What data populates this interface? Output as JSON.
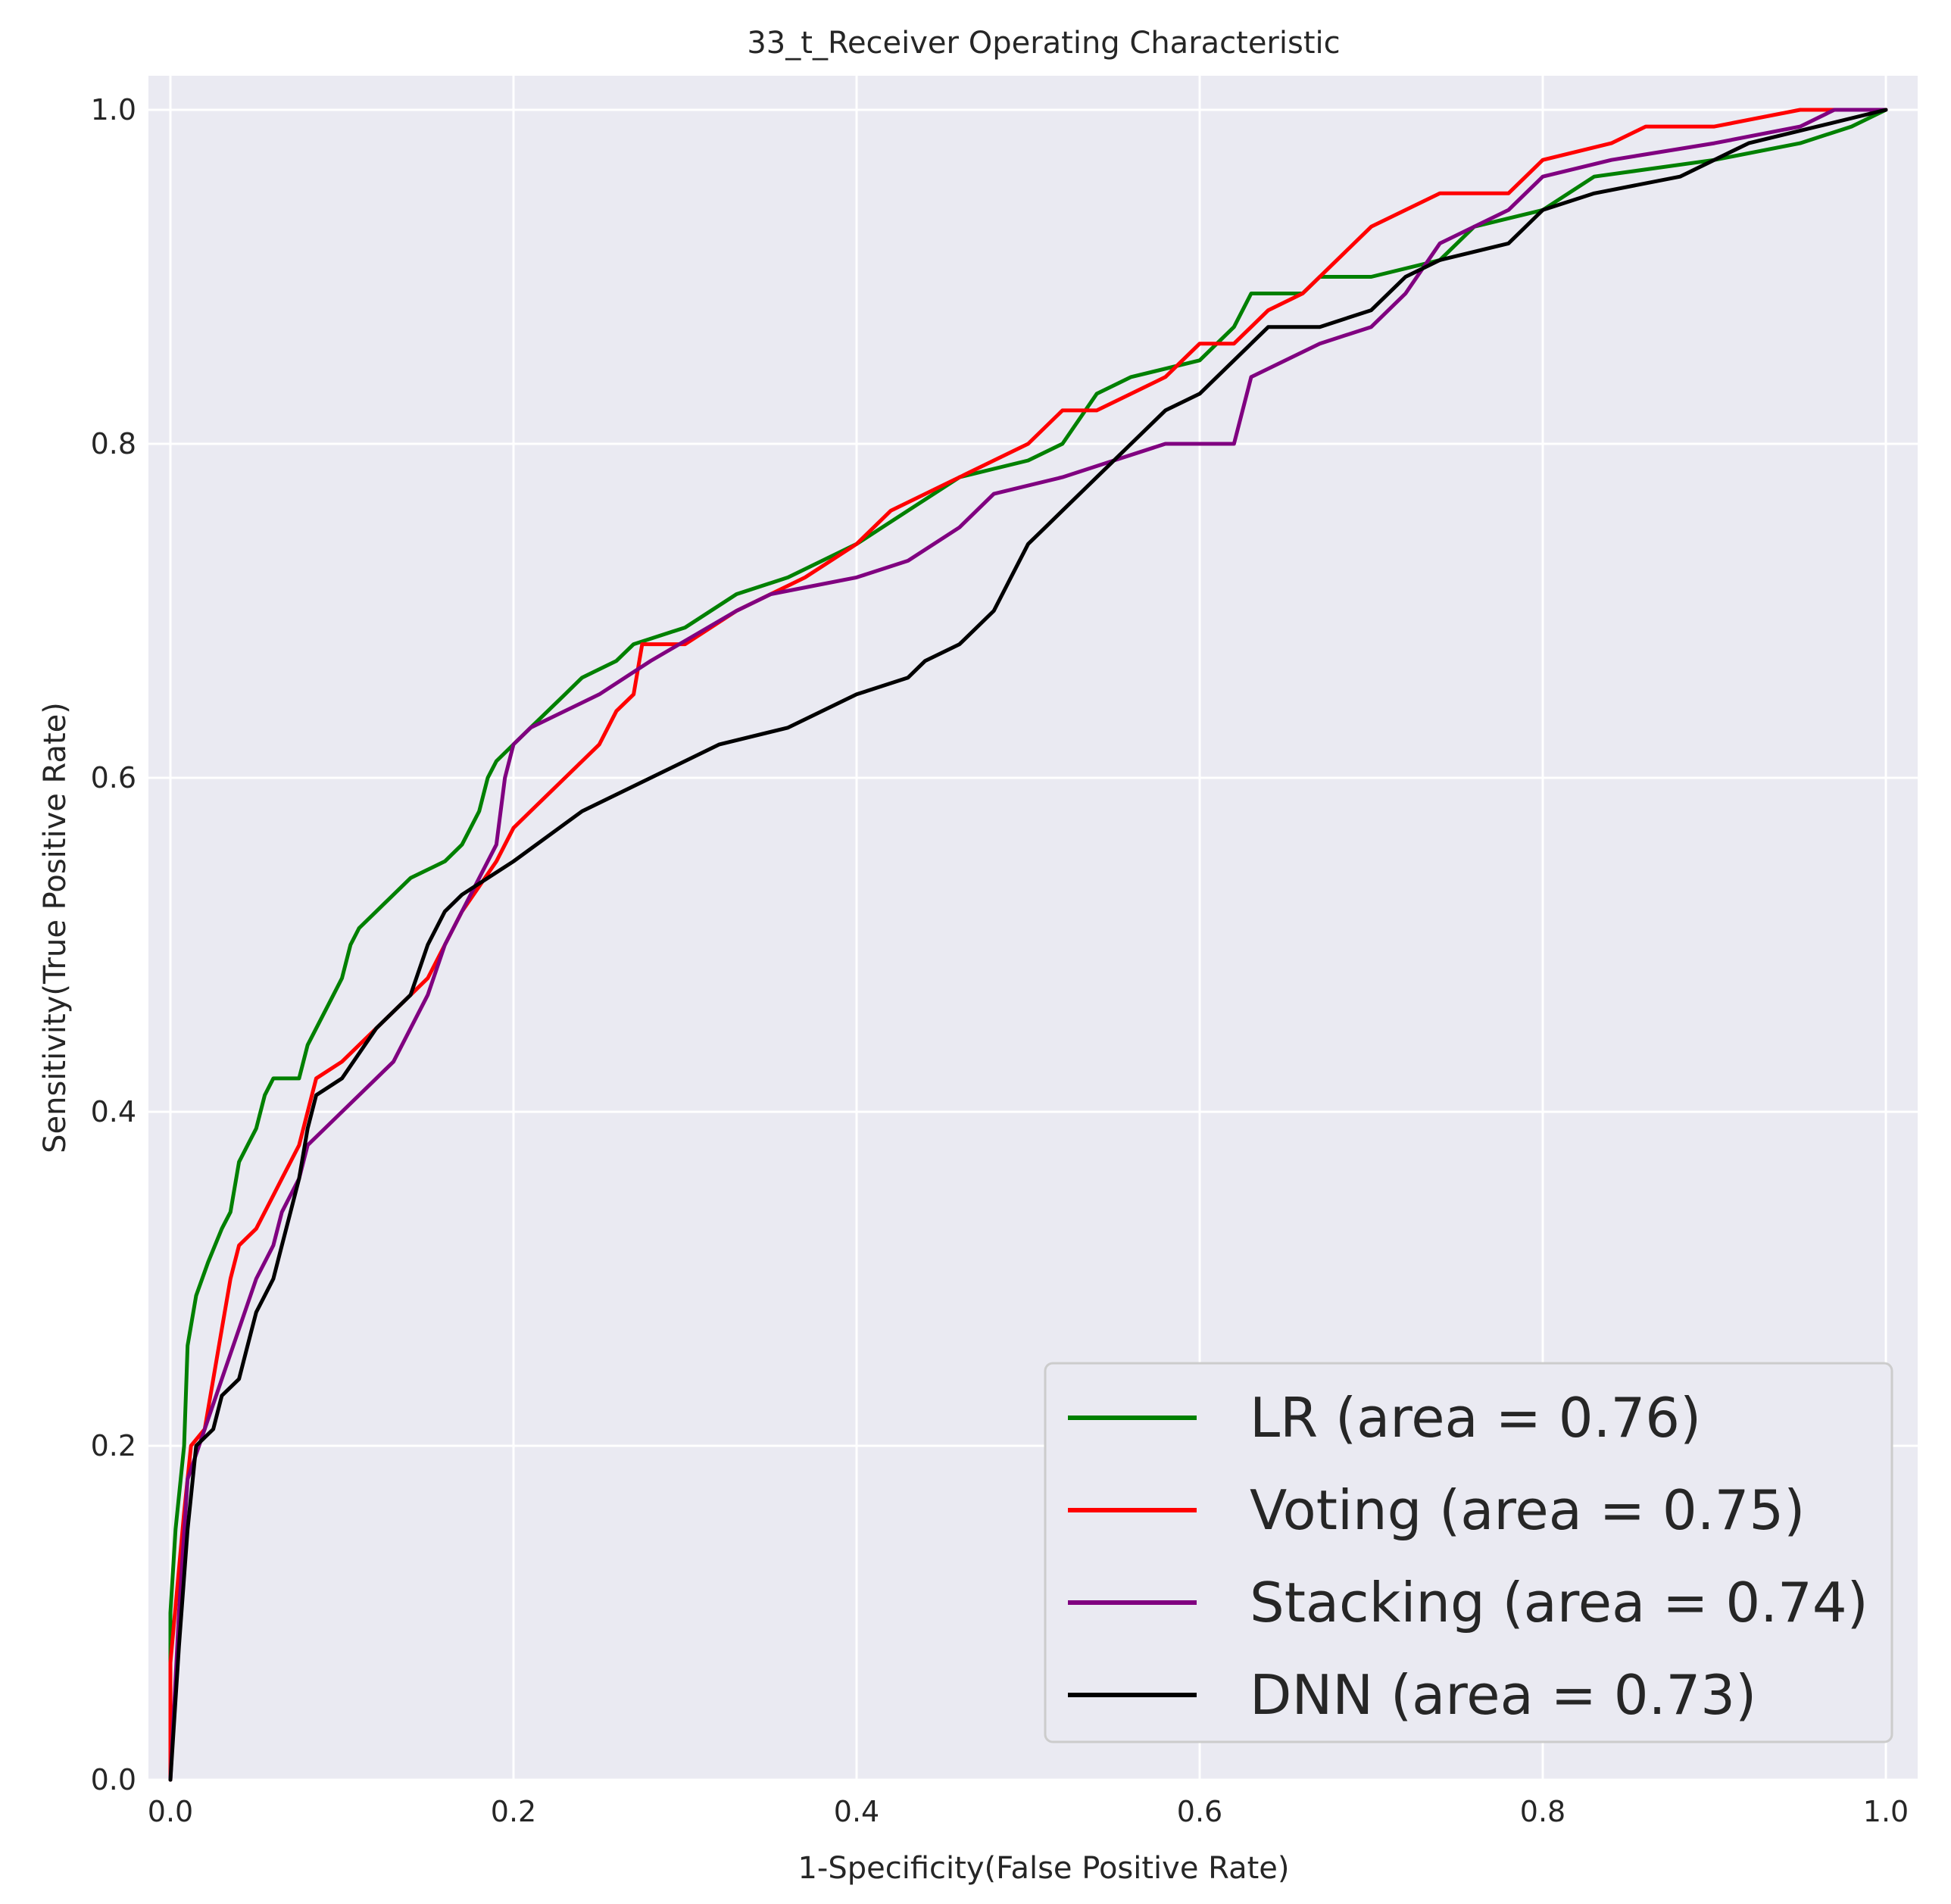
{
  "chart_data": {
    "type": "line",
    "title": "33_t_Receiver Operating Characteristic",
    "xlabel": "1-Specificity(False Positive Rate)",
    "ylabel": "Sensitivity(True Positive Rate)",
    "xlim": [
      0.0,
      1.0
    ],
    "ylim": [
      0.0,
      1.0
    ],
    "xticks": [
      "0.0",
      "0.2",
      "0.4",
      "0.6",
      "0.8",
      "1.0"
    ],
    "yticks": [
      "0.0",
      "0.2",
      "0.4",
      "0.6",
      "0.8",
      "1.0"
    ],
    "grid": true,
    "background": "#eaeaf2",
    "legend_position": "lower-right",
    "series": [
      {
        "name": "LR (area = 0.76)",
        "color": "#008000",
        "points": [
          [
            0,
            0
          ],
          [
            0,
            0.1
          ],
          [
            0.003,
            0.15
          ],
          [
            0.008,
            0.2
          ],
          [
            0.01,
            0.26
          ],
          [
            0.015,
            0.29
          ],
          [
            0.022,
            0.31
          ],
          [
            0.03,
            0.33
          ],
          [
            0.035,
            0.34
          ],
          [
            0.04,
            0.37
          ],
          [
            0.045,
            0.38
          ],
          [
            0.05,
            0.39
          ],
          [
            0.055,
            0.41
          ],
          [
            0.06,
            0.42
          ],
          [
            0.075,
            0.42
          ],
          [
            0.08,
            0.44
          ],
          [
            0.085,
            0.45
          ],
          [
            0.09,
            0.46
          ],
          [
            0.095,
            0.47
          ],
          [
            0.1,
            0.48
          ],
          [
            0.105,
            0.5
          ],
          [
            0.11,
            0.51
          ],
          [
            0.12,
            0.52
          ],
          [
            0.13,
            0.53
          ],
          [
            0.14,
            0.54
          ],
          [
            0.15,
            0.545
          ],
          [
            0.16,
            0.55
          ],
          [
            0.17,
            0.56
          ],
          [
            0.18,
            0.58
          ],
          [
            0.185,
            0.6
          ],
          [
            0.19,
            0.61
          ],
          [
            0.2,
            0.62
          ],
          [
            0.21,
            0.63
          ],
          [
            0.22,
            0.64
          ],
          [
            0.23,
            0.65
          ],
          [
            0.24,
            0.66
          ],
          [
            0.26,
            0.67
          ],
          [
            0.27,
            0.68
          ],
          [
            0.3,
            0.69
          ],
          [
            0.33,
            0.71
          ],
          [
            0.36,
            0.72
          ],
          [
            0.4,
            0.74
          ],
          [
            0.43,
            0.76
          ],
          [
            0.46,
            0.78
          ],
          [
            0.5,
            0.79
          ],
          [
            0.52,
            0.8
          ],
          [
            0.54,
            0.83
          ],
          [
            0.56,
            0.84
          ],
          [
            0.6,
            0.85
          ],
          [
            0.62,
            0.87
          ],
          [
            0.63,
            0.89
          ],
          [
            0.66,
            0.89
          ],
          [
            0.67,
            0.9
          ],
          [
            0.7,
            0.9
          ],
          [
            0.74,
            0.91
          ],
          [
            0.76,
            0.93
          ],
          [
            0.8,
            0.94
          ],
          [
            0.83,
            0.96
          ],
          [
            0.9,
            0.97
          ],
          [
            0.95,
            0.98
          ],
          [
            0.98,
            0.99
          ],
          [
            1,
            1
          ]
        ]
      },
      {
        "name": "Voting (area = 0.75)",
        "color": "#ff0000",
        "points": [
          [
            0,
            0
          ],
          [
            0,
            0.07
          ],
          [
            0.008,
            0.16
          ],
          [
            0.012,
            0.2
          ],
          [
            0.02,
            0.21
          ],
          [
            0.025,
            0.24
          ],
          [
            0.03,
            0.27
          ],
          [
            0.035,
            0.3
          ],
          [
            0.04,
            0.32
          ],
          [
            0.05,
            0.33
          ],
          [
            0.06,
            0.35
          ],
          [
            0.065,
            0.36
          ],
          [
            0.075,
            0.38
          ],
          [
            0.08,
            0.4
          ],
          [
            0.085,
            0.42
          ],
          [
            0.1,
            0.43
          ],
          [
            0.11,
            0.44
          ],
          [
            0.12,
            0.45
          ],
          [
            0.13,
            0.46
          ],
          [
            0.14,
            0.47
          ],
          [
            0.15,
            0.48
          ],
          [
            0.16,
            0.5
          ],
          [
            0.17,
            0.52
          ],
          [
            0.19,
            0.55
          ],
          [
            0.2,
            0.57
          ],
          [
            0.21,
            0.58
          ],
          [
            0.22,
            0.59
          ],
          [
            0.23,
            0.6
          ],
          [
            0.24,
            0.61
          ],
          [
            0.25,
            0.62
          ],
          [
            0.26,
            0.64
          ],
          [
            0.27,
            0.65
          ],
          [
            0.275,
            0.68
          ],
          [
            0.3,
            0.68
          ],
          [
            0.33,
            0.7
          ],
          [
            0.37,
            0.72
          ],
          [
            0.4,
            0.74
          ],
          [
            0.42,
            0.76
          ],
          [
            0.46,
            0.78
          ],
          [
            0.48,
            0.79
          ],
          [
            0.5,
            0.8
          ],
          [
            0.52,
            0.82
          ],
          [
            0.54,
            0.82
          ],
          [
            0.56,
            0.83
          ],
          [
            0.58,
            0.84
          ],
          [
            0.6,
            0.86
          ],
          [
            0.62,
            0.86
          ],
          [
            0.64,
            0.88
          ],
          [
            0.66,
            0.89
          ],
          [
            0.68,
            0.91
          ],
          [
            0.7,
            0.93
          ],
          [
            0.72,
            0.94
          ],
          [
            0.74,
            0.95
          ],
          [
            0.78,
            0.95
          ],
          [
            0.8,
            0.97
          ],
          [
            0.84,
            0.98
          ],
          [
            0.86,
            0.99
          ],
          [
            0.9,
            0.99
          ],
          [
            0.95,
            1
          ],
          [
            1,
            1
          ]
        ]
      },
      {
        "name": "Stacking (area = 0.74)",
        "color": "#800080",
        "points": [
          [
            0,
            0
          ],
          [
            0.005,
            0.1
          ],
          [
            0.01,
            0.18
          ],
          [
            0.02,
            0.21
          ],
          [
            0.03,
            0.24
          ],
          [
            0.04,
            0.27
          ],
          [
            0.05,
            0.3
          ],
          [
            0.06,
            0.32
          ],
          [
            0.065,
            0.34
          ],
          [
            0.075,
            0.36
          ],
          [
            0.08,
            0.38
          ],
          [
            0.09,
            0.39
          ],
          [
            0.1,
            0.4
          ],
          [
            0.12,
            0.42
          ],
          [
            0.13,
            0.43
          ],
          [
            0.14,
            0.45
          ],
          [
            0.15,
            0.47
          ],
          [
            0.16,
            0.5
          ],
          [
            0.17,
            0.52
          ],
          [
            0.18,
            0.54
          ],
          [
            0.19,
            0.56
          ],
          [
            0.195,
            0.6
          ],
          [
            0.2,
            0.62
          ],
          [
            0.21,
            0.63
          ],
          [
            0.25,
            0.65
          ],
          [
            0.28,
            0.67
          ],
          [
            0.33,
            0.7
          ],
          [
            0.35,
            0.71
          ],
          [
            0.4,
            0.72
          ],
          [
            0.43,
            0.73
          ],
          [
            0.46,
            0.75
          ],
          [
            0.48,
            0.77
          ],
          [
            0.52,
            0.78
          ],
          [
            0.55,
            0.79
          ],
          [
            0.58,
            0.8
          ],
          [
            0.62,
            0.8
          ],
          [
            0.63,
            0.84
          ],
          [
            0.65,
            0.85
          ],
          [
            0.67,
            0.86
          ],
          [
            0.7,
            0.87
          ],
          [
            0.72,
            0.89
          ],
          [
            0.74,
            0.92
          ],
          [
            0.78,
            0.94
          ],
          [
            0.8,
            0.96
          ],
          [
            0.84,
            0.97
          ],
          [
            0.9,
            0.98
          ],
          [
            0.95,
            0.99
          ],
          [
            0.97,
            1
          ],
          [
            1,
            1
          ]
        ]
      },
      {
        "name": "DNN (area = 0.73)",
        "color": "#000000",
        "points": [
          [
            0,
            0
          ],
          [
            0.005,
            0.08
          ],
          [
            0.01,
            0.15
          ],
          [
            0.015,
            0.2
          ],
          [
            0.025,
            0.21
          ],
          [
            0.03,
            0.23
          ],
          [
            0.04,
            0.24
          ],
          [
            0.045,
            0.26
          ],
          [
            0.05,
            0.28
          ],
          [
            0.055,
            0.29
          ],
          [
            0.06,
            0.3
          ],
          [
            0.065,
            0.32
          ],
          [
            0.07,
            0.34
          ],
          [
            0.075,
            0.36
          ],
          [
            0.08,
            0.39
          ],
          [
            0.085,
            0.41
          ],
          [
            0.1,
            0.42
          ],
          [
            0.12,
            0.45
          ],
          [
            0.14,
            0.47
          ],
          [
            0.15,
            0.5
          ],
          [
            0.16,
            0.52
          ],
          [
            0.17,
            0.53
          ],
          [
            0.2,
            0.55
          ],
          [
            0.24,
            0.58
          ],
          [
            0.28,
            0.6
          ],
          [
            0.32,
            0.62
          ],
          [
            0.36,
            0.63
          ],
          [
            0.4,
            0.65
          ],
          [
            0.43,
            0.66
          ],
          [
            0.44,
            0.67
          ],
          [
            0.46,
            0.68
          ],
          [
            0.48,
            0.7
          ],
          [
            0.49,
            0.72
          ],
          [
            0.5,
            0.74
          ],
          [
            0.51,
            0.75
          ],
          [
            0.52,
            0.76
          ],
          [
            0.54,
            0.78
          ],
          [
            0.56,
            0.8
          ],
          [
            0.58,
            0.82
          ],
          [
            0.6,
            0.83
          ],
          [
            0.62,
            0.85
          ],
          [
            0.64,
            0.87
          ],
          [
            0.67,
            0.87
          ],
          [
            0.7,
            0.88
          ],
          [
            0.72,
            0.9
          ],
          [
            0.74,
            0.91
          ],
          [
            0.78,
            0.92
          ],
          [
            0.8,
            0.94
          ],
          [
            0.83,
            0.95
          ],
          [
            0.88,
            0.96
          ],
          [
            0.92,
            0.98
          ],
          [
            0.96,
            0.99
          ],
          [
            1,
            1
          ]
        ]
      }
    ]
  }
}
